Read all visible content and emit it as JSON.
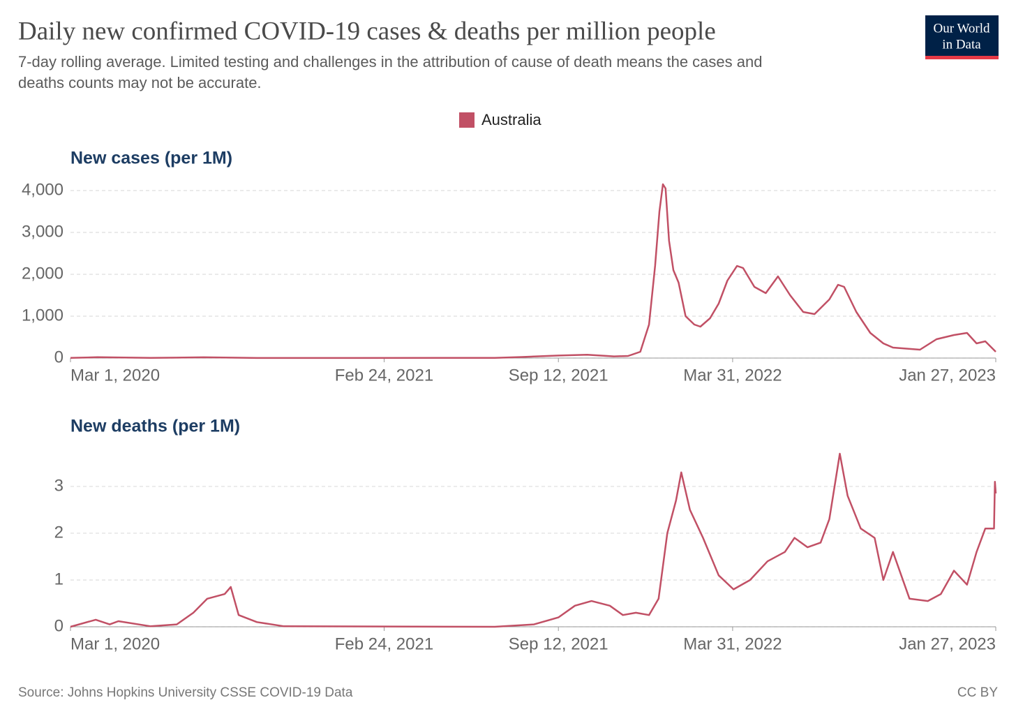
{
  "title": "Daily new confirmed COVID-19 cases & deaths per million people",
  "subtitle": [
    "7-day rolling average. Limited testing and challenges in the attribution of cause of death means the cases and",
    "deaths counts may not be accurate."
  ],
  "logo": [
    "Our World",
    "in Data"
  ],
  "source": "Source: Johns Hopkins University CSSE COVID-19 Data",
  "license": "CC BY",
  "chart_data": [
    {
      "type": "line",
      "title": "New cases (per 1M)",
      "x": [
        "2020-03-01",
        "2020-04-01",
        "2020-06-01",
        "2020-08-01",
        "2020-10-01",
        "2021-01-01",
        "2021-07-01",
        "2021-08-01",
        "2021-09-12",
        "2021-10-15",
        "2021-11-15",
        "2021-12-01",
        "2021-12-15",
        "2021-12-25",
        "2022-01-01",
        "2022-01-06",
        "2022-01-10",
        "2022-01-13",
        "2022-01-17",
        "2022-01-22",
        "2022-01-28",
        "2022-02-05",
        "2022-02-15",
        "2022-02-22",
        "2022-03-05",
        "2022-03-15",
        "2022-03-25",
        "2022-04-05",
        "2022-04-12",
        "2022-04-25",
        "2022-05-08",
        "2022-05-22",
        "2022-06-05",
        "2022-06-20",
        "2022-07-03",
        "2022-07-20",
        "2022-07-30",
        "2022-08-06",
        "2022-08-20",
        "2022-09-05",
        "2022-09-20",
        "2022-10-01",
        "2022-11-01",
        "2022-11-20",
        "2022-12-10",
        "2022-12-25",
        "2023-01-05",
        "2023-01-15",
        "2023-01-27"
      ],
      "series": [
        {
          "name": "Australia",
          "color": "#c15065",
          "values": [
            5,
            20,
            3,
            18,
            2,
            1,
            5,
            25,
            60,
            80,
            40,
            50,
            150,
            800,
            2200,
            3500,
            4150,
            4050,
            2800,
            2100,
            1800,
            1000,
            800,
            750,
            950,
            1300,
            1850,
            2200,
            2150,
            1700,
            1550,
            1950,
            1500,
            1100,
            1050,
            1400,
            1750,
            1700,
            1100,
            600,
            350,
            250,
            200,
            450,
            550,
            600,
            350,
            400,
            150
          ]
        }
      ],
      "xlim": [
        "2020-03-01",
        "2023-01-27"
      ],
      "xticks": [
        {
          "value": "2020-03-01",
          "label": "Mar 1, 2020"
        },
        {
          "value": "2021-02-24",
          "label": "Feb 24, 2021"
        },
        {
          "value": "2021-09-12",
          "label": "Sep 12, 2021"
        },
        {
          "value": "2022-03-31",
          "label": "Mar 31, 2022"
        },
        {
          "value": "2023-01-27",
          "label": "Jan 27, 2023"
        }
      ],
      "ylim": [
        0,
        4200
      ],
      "yticks": [
        0,
        {
          "value": 1000,
          "label": "1,000"
        },
        {
          "value": 2000,
          "label": "2,000"
        },
        {
          "value": 3000,
          "label": "3,000"
        },
        {
          "value": 4000,
          "label": "4,000"
        }
      ],
      "grid": true
    },
    {
      "type": "line",
      "title": "New deaths (per 1M)",
      "x": [
        "2020-03-01",
        "2020-03-30",
        "2020-04-15",
        "2020-04-25",
        "2020-06-01",
        "2020-07-01",
        "2020-07-20",
        "2020-08-05",
        "2020-08-25",
        "2020-09-01",
        "2020-09-10",
        "2020-10-01",
        "2020-11-01",
        "2021-07-01",
        "2021-08-15",
        "2021-09-12",
        "2021-10-01",
        "2021-10-20",
        "2021-11-10",
        "2021-11-25",
        "2021-12-10",
        "2021-12-25",
        "2022-01-05",
        "2022-01-15",
        "2022-01-25",
        "2022-01-31",
        "2022-02-10",
        "2022-02-25",
        "2022-03-15",
        "2022-04-01",
        "2022-04-20",
        "2022-05-10",
        "2022-05-30",
        "2022-06-10",
        "2022-06-25",
        "2022-07-10",
        "2022-07-20",
        "2022-08-01",
        "2022-08-10",
        "2022-08-25",
        "2022-09-10",
        "2022-09-20",
        "2022-10-01",
        "2022-10-20",
        "2022-11-10",
        "2022-11-25",
        "2022-12-10",
        "2022-12-25",
        "2023-01-05",
        "2023-01-15",
        "2023-01-25",
        "2023-01-26",
        "2023-01-27"
      ],
      "series": [
        {
          "color": "#c15065",
          "values": [
            0,
            0.15,
            0.05,
            0.12,
            0.01,
            0.05,
            0.3,
            0.6,
            0.7,
            0.85,
            0.25,
            0.1,
            0.01,
            0,
            0.05,
            0.2,
            0.45,
            0.55,
            0.45,
            0.25,
            0.3,
            0.25,
            0.6,
            2.0,
            2.7,
            3.3,
            2.5,
            1.9,
            1.1,
            0.8,
            1.0,
            1.4,
            1.6,
            1.9,
            1.7,
            1.8,
            2.3,
            3.7,
            2.8,
            2.1,
            1.9,
            1.0,
            1.6,
            0.6,
            0.55,
            0.7,
            1.2,
            0.9,
            1.6,
            2.1,
            2.1,
            3.1,
            2.85
          ]
        }
      ],
      "xlim": [
        "2020-03-01",
        "2023-01-27"
      ],
      "xticks": [
        {
          "value": "2020-03-01",
          "label": "Mar 1, 2020"
        },
        {
          "value": "2021-02-24",
          "label": "Feb 24, 2021"
        },
        {
          "value": "2021-09-12",
          "label": "Sep 12, 2021"
        },
        {
          "value": "2022-03-31",
          "label": "Mar 31, 2022"
        },
        {
          "value": "2023-01-27",
          "label": "Jan 27, 2023"
        }
      ],
      "ylim": [
        0,
        3.7
      ],
      "yticks": [
        0,
        1,
        2,
        3
      ],
      "grid": true
    }
  ]
}
